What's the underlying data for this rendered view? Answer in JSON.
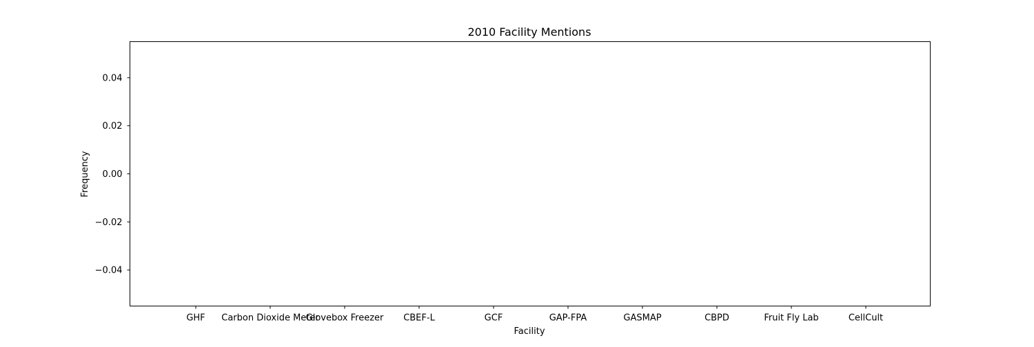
{
  "chart_data": {
    "type": "bar",
    "title": "2010 Facility Mentions",
    "xlabel": "Facility",
    "ylabel": "Frequency",
    "categories": [
      "GHF",
      "Carbon Dioxide Meter",
      "Glovebox Freezer",
      "CBEF-L",
      "GCF",
      "GAP-FPA",
      "GASMAP",
      "CBPD",
      "Fruit Fly Lab",
      "CellCult"
    ],
    "values": [
      0,
      0,
      0,
      0,
      0,
      0,
      0,
      0,
      0,
      0
    ],
    "ylim": [
      -0.055,
      0.055
    ],
    "yticks": [
      0.04,
      0.02,
      0.0,
      -0.02,
      -0.04
    ],
    "ytick_labels": [
      "0.04",
      "0.02",
      "0.00",
      "−0.02",
      "−0.04"
    ],
    "grid": false,
    "legend": "none",
    "colors": {
      "bar": "#1f77b4",
      "axis": "#000000",
      "background": "#ffffff"
    }
  }
}
